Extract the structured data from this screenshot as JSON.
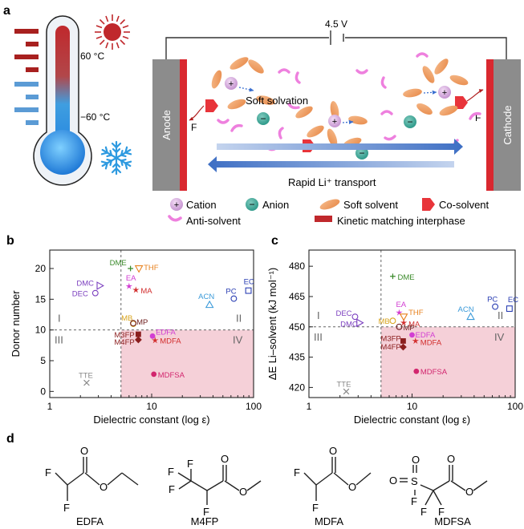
{
  "panel_a": {
    "label": "a",
    "temp_high": "60 °C",
    "temp_low": "−60 °C",
    "voltage": "4.5 V",
    "anode": "Anode",
    "cathode": "Cathode",
    "soft_solvation": "Soft solvation",
    "rapid_transport": "Rapid Li⁺ transport",
    "fluorine_left": "F",
    "fluorine_right": "F",
    "legend": {
      "cation": "Cation",
      "anion": "Anion",
      "soft_solvent": "Soft solvent",
      "co_solvent": "Co-solvent",
      "anti_solvent": "Anti-solvent",
      "interphase": "Kinetic matching interphase"
    },
    "colors": {
      "hot": "#c0282c",
      "cold": "#5b9bd5",
      "electrode": "#8c8c8c",
      "interphase": "#d9282f",
      "arrow": "#4472c4"
    }
  },
  "chart_data": [
    {
      "type": "scatter",
      "panel": "b",
      "xlabel": "Dielectric constant (log ε)",
      "ylabel": "Donor number",
      "xscale": "log",
      "xlim": [
        1,
        100
      ],
      "ylim": [
        -1,
        23
      ],
      "xticks": [
        1,
        10,
        100
      ],
      "yticks": [
        0,
        5,
        10,
        15,
        20
      ],
      "threshold_x": 5,
      "threshold_y": 10,
      "quadrants": [
        "I",
        "II",
        "III",
        "IV"
      ],
      "points": [
        {
          "label": "DME",
          "x": 6.2,
          "y": 20,
          "color": "#3a8a2a",
          "marker": "plus"
        },
        {
          "label": "THF",
          "x": 7.5,
          "y": 20,
          "color": "#e8821e",
          "marker": "tri-down"
        },
        {
          "label": "EA",
          "x": 6.0,
          "y": 17.1,
          "color": "#d23ed2",
          "marker": "star"
        },
        {
          "label": "MA",
          "x": 7.0,
          "y": 16.5,
          "color": "#d22e2e",
          "marker": "star"
        },
        {
          "label": "DMC",
          "x": 3.1,
          "y": 17.2,
          "color": "#7b3fbf",
          "marker": "tri-right"
        },
        {
          "label": "DEC",
          "x": 2.8,
          "y": 16.0,
          "color": "#7b3fbf",
          "marker": "circle-open"
        },
        {
          "label": "ACN",
          "x": 37,
          "y": 14.1,
          "color": "#3a9ad9",
          "marker": "tri-up"
        },
        {
          "label": "PC",
          "x": 64,
          "y": 15.1,
          "color": "#2a3eb3",
          "marker": "circle-open"
        },
        {
          "label": "EC",
          "x": 89,
          "y": 16.4,
          "color": "#2a3eb3",
          "marker": "square-open"
        },
        {
          "label": "MB",
          "x": 6.6,
          "y": 11.0,
          "color": "#d9a520",
          "marker": "circle-open"
        },
        {
          "label": "MP",
          "x": 6.6,
          "y": 11.1,
          "color": "#6e1e1e",
          "marker": "circle-open"
        },
        {
          "label": "M3FP",
          "x": 7.4,
          "y": 9.3,
          "color": "#8b1e1e",
          "marker": "square"
        },
        {
          "label": "M4FP",
          "x": 7.4,
          "y": 8.4,
          "color": "#8b1e1e",
          "marker": "diamond"
        },
        {
          "label": "EDFA",
          "x": 10.2,
          "y": 9.0,
          "color": "#d23ed2",
          "marker": "circle"
        },
        {
          "label": "MDFA",
          "x": 10.8,
          "y": 8.3,
          "color": "#d22e2e",
          "marker": "star"
        },
        {
          "label": "MDFSA",
          "x": 10.5,
          "y": 2.8,
          "color": "#d2266e",
          "marker": "circle"
        },
        {
          "label": "TTE",
          "x": 2.3,
          "y": 1.4,
          "color": "#888888",
          "marker": "x"
        }
      ]
    },
    {
      "type": "scatter",
      "panel": "c",
      "xlabel": "Dielectric constant (log ε)",
      "ylabel": "ΔE Li–solvent (kJ mol⁻¹)",
      "xscale": "log",
      "xlim": [
        1,
        100
      ],
      "ylim": [
        415,
        488
      ],
      "xticks": [
        1,
        10,
        100
      ],
      "yticks": [
        420,
        435,
        450,
        465,
        480
      ],
      "threshold_x": 5,
      "threshold_y": 450,
      "quadrants": [
        "I",
        "II",
        "III",
        "IV"
      ],
      "points": [
        {
          "label": "DME",
          "x": 6.5,
          "y": 475,
          "color": "#3a8a2a",
          "marker": "plus"
        },
        {
          "label": "EA",
          "x": 7.5,
          "y": 457,
          "color": "#d23ed2",
          "marker": "star"
        },
        {
          "label": "THF",
          "x": 8.3,
          "y": 455,
          "color": "#e8821e",
          "marker": "tri-down"
        },
        {
          "label": "MA",
          "x": 8.3,
          "y": 452,
          "color": "#d22e2e",
          "marker": "star"
        },
        {
          "label": "DEC",
          "x": 2.8,
          "y": 455,
          "color": "#7b3fbf",
          "marker": "circle-open"
        },
        {
          "label": "DMC",
          "x": 3.1,
          "y": 452,
          "color": "#7b3fbf",
          "marker": "tri-right"
        },
        {
          "label": "MB",
          "x": 6.5,
          "y": 453,
          "color": "#d9a520",
          "marker": "circle-open"
        },
        {
          "label": "MP",
          "x": 7.5,
          "y": 450,
          "color": "#6e1e1e",
          "marker": "circle-open"
        },
        {
          "label": "ACN",
          "x": 37,
          "y": 455,
          "color": "#3a9ad9",
          "marker": "tri-up"
        },
        {
          "label": "PC",
          "x": 64,
          "y": 460,
          "color": "#2a3eb3",
          "marker": "circle-open"
        },
        {
          "label": "EC",
          "x": 88,
          "y": 459,
          "color": "#2a3eb3",
          "marker": "square-open"
        },
        {
          "label": "EDFA",
          "x": 10,
          "y": 446,
          "color": "#d23ed2",
          "marker": "circle"
        },
        {
          "label": "M3FP",
          "x": 8.2,
          "y": 443,
          "color": "#8b1e1e",
          "marker": "square"
        },
        {
          "label": "MDFA",
          "x": 10.8,
          "y": 443,
          "color": "#d22e2e",
          "marker": "star"
        },
        {
          "label": "M4FP",
          "x": 8.2,
          "y": 440,
          "color": "#8b1e1e",
          "marker": "diamond"
        },
        {
          "label": "MDFSA",
          "x": 11,
          "y": 428,
          "color": "#d2266e",
          "marker": "circle"
        },
        {
          "label": "TTE",
          "x": 2.3,
          "y": 418,
          "color": "#888888",
          "marker": "x"
        }
      ]
    }
  ],
  "panel_labels": {
    "b": "b",
    "c": "c",
    "d": "d"
  },
  "molecules": {
    "edfa": {
      "name": "EDFA",
      "f": "F",
      "o": "O"
    },
    "m4fp": {
      "name": "M4FP",
      "f": "F",
      "o": "O"
    },
    "mdfa": {
      "name": "MDFA",
      "f": "F",
      "o": "O"
    },
    "mdfsa": {
      "name": "MDFSA",
      "f": "F",
      "o": "O",
      "s": "S"
    }
  }
}
